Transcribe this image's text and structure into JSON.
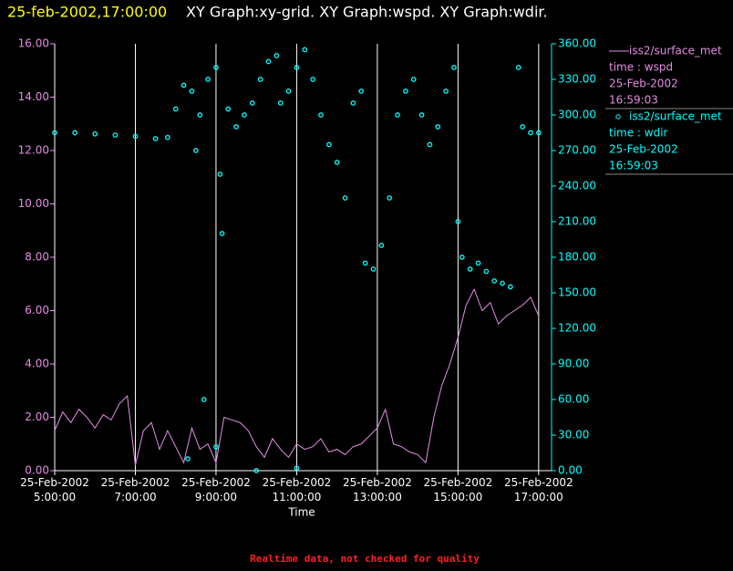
{
  "chart_data": {
    "type": "line",
    "title": "25-feb-2002,17:00:00",
    "subtitle": "XY Graph:xy-grid.  XY Graph:wspd.  XY Graph:wdir.",
    "x_label": "Time",
    "footer": "Realtime data, not checked for quality",
    "xlim": [
      5,
      17.32
    ],
    "xticks": [
      {
        "value": 5,
        "label": "25-Feb-2002 5:00:00"
      },
      {
        "value": 7,
        "label": "25-Feb-2002 7:00:00"
      },
      {
        "value": 9,
        "label": "25-Feb-2002 9:00:00"
      },
      {
        "value": 11,
        "label": "25-Feb-2002 11:00:00"
      },
      {
        "value": 13,
        "label": "25-Feb-2002 13:00:00"
      },
      {
        "value": 15,
        "label": "25-Feb-2002 15:00:00"
      },
      {
        "value": 17,
        "label": "25-Feb-2002 17:00:00"
      }
    ],
    "ylim": [
      0,
      16
    ],
    "yticks": [
      {
        "value": 0,
        "label": "0.00"
      },
      {
        "value": 2,
        "label": "2.00"
      },
      {
        "value": 4,
        "label": "4.00"
      },
      {
        "value": 6,
        "label": "6.00"
      },
      {
        "value": 8,
        "label": "8.00"
      },
      {
        "value": 10,
        "label": "10.00"
      },
      {
        "value": 12,
        "label": "12.00"
      },
      {
        "value": 14,
        "label": "14.00"
      },
      {
        "value": 16,
        "label": "16.00"
      }
    ],
    "y2lim": [
      0,
      360
    ],
    "y2ticks": [
      {
        "value": 0,
        "label": "0.00"
      },
      {
        "value": 30,
        "label": "30.00"
      },
      {
        "value": 60,
        "label": "60.00"
      },
      {
        "value": 90,
        "label": "90.00"
      },
      {
        "value": 120,
        "label": "120.00"
      },
      {
        "value": 150,
        "label": "150.00"
      },
      {
        "value": 180,
        "label": "180.00"
      },
      {
        "value": 210,
        "label": "210.00"
      },
      {
        "value": 240,
        "label": "240.00"
      },
      {
        "value": 270,
        "label": "270.00"
      },
      {
        "value": 300,
        "label": "300.00"
      },
      {
        "value": 330,
        "label": "330.00"
      },
      {
        "value": 360,
        "label": "360.00"
      }
    ],
    "grid": true,
    "series": [
      {
        "name": "iss2/surface_met",
        "legend_lines": [
          "time : wspd",
          "25-Feb-2002",
          "16:59:03"
        ],
        "kind": "line",
        "color": "#e38ee3",
        "x": [
          5.0,
          5.2,
          5.4,
          5.6,
          5.8,
          6.0,
          6.2,
          6.4,
          6.6,
          6.8,
          7.0,
          7.2,
          7.4,
          7.6,
          7.8,
          8.0,
          8.2,
          8.4,
          8.6,
          8.8,
          9.0,
          9.2,
          9.4,
          9.6,
          9.8,
          10.0,
          10.2,
          10.4,
          10.6,
          10.8,
          11.0,
          11.2,
          11.4,
          11.6,
          11.8,
          12.0,
          12.2,
          12.4,
          12.6,
          12.8,
          13.0,
          13.2,
          13.4,
          13.6,
          13.8,
          14.0,
          14.2,
          14.4,
          14.6,
          14.8,
          15.0,
          15.2,
          15.4,
          15.6,
          15.8,
          16.0,
          16.2,
          16.4,
          16.6,
          16.8,
          17.0
        ],
        "values": [
          1.5,
          2.2,
          1.8,
          2.3,
          2.0,
          1.6,
          2.1,
          1.9,
          2.5,
          2.8,
          0.2,
          1.5,
          1.8,
          0.8,
          1.5,
          0.9,
          0.3,
          1.6,
          0.8,
          1.0,
          0.3,
          2.0,
          1.9,
          1.8,
          1.5,
          0.9,
          0.5,
          1.2,
          0.8,
          0.5,
          1.0,
          0.8,
          0.9,
          1.2,
          0.7,
          0.8,
          0.6,
          0.9,
          1.0,
          1.3,
          1.6,
          2.3,
          1.0,
          0.9,
          0.7,
          0.6,
          0.3,
          2.0,
          3.2,
          4.0,
          5.0,
          6.2,
          6.8,
          6.0,
          6.3,
          5.5,
          5.8,
          6.0,
          6.2,
          6.5,
          5.8
        ]
      },
      {
        "name": "iss2/surface_met",
        "legend_lines": [
          "time : wdir",
          "25-Feb-2002",
          "16:59:03"
        ],
        "kind": "scatter",
        "color": "#00ffff",
        "axis": "y2",
        "x": [
          5.0,
          5.5,
          6.0,
          6.5,
          7.0,
          7.5,
          7.8,
          8.0,
          8.2,
          8.3,
          8.4,
          8.5,
          8.6,
          8.7,
          8.8,
          9.0,
          9.0,
          9.1,
          9.15,
          9.3,
          9.5,
          9.7,
          9.9,
          10.0,
          10.1,
          10.3,
          10.5,
          10.6,
          10.8,
          11.0,
          11.0,
          11.2,
          11.4,
          11.6,
          11.8,
          12.0,
          12.2,
          12.4,
          12.6,
          12.7,
          12.9,
          13.1,
          13.3,
          13.5,
          13.7,
          13.9,
          14.1,
          14.3,
          14.5,
          14.7,
          14.9,
          15.0,
          15.1,
          15.3,
          15.5,
          15.7,
          15.9,
          16.1,
          16.3,
          16.5,
          16.6,
          16.8,
          17.0
        ],
        "values": [
          285,
          285,
          284,
          283,
          282,
          280,
          281,
          305,
          325,
          10,
          320,
          270,
          300,
          60,
          330,
          340,
          20,
          250,
          200,
          305,
          290,
          300,
          310,
          0,
          330,
          345,
          350,
          310,
          320,
          340,
          2,
          355,
          330,
          300,
          275,
          260,
          230,
          310,
          320,
          175,
          170,
          190,
          230,
          300,
          320,
          330,
          300,
          275,
          290,
          320,
          340,
          210,
          180,
          170,
          175,
          168,
          160,
          158,
          155,
          340,
          290,
          285,
          285
        ]
      }
    ]
  }
}
